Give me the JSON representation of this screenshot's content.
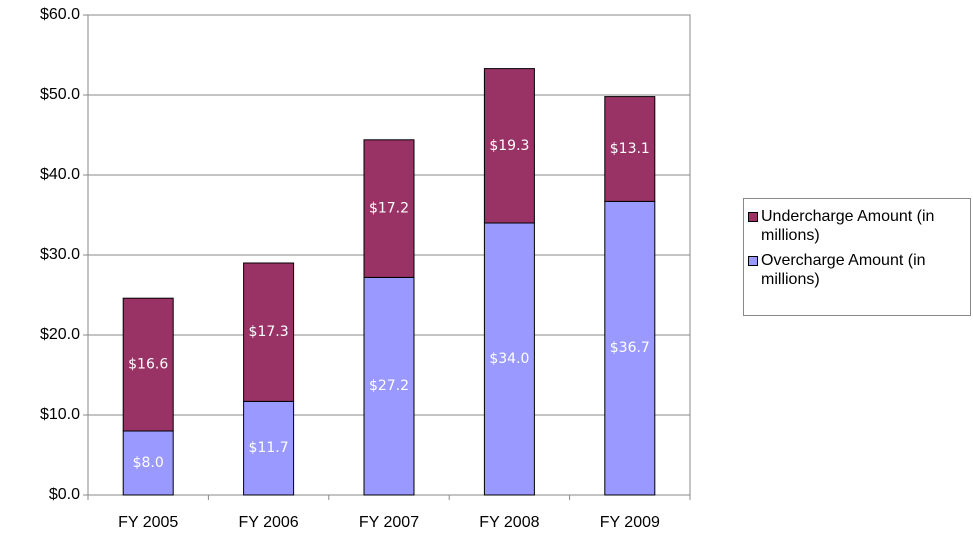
{
  "chart_data": {
    "type": "stacked-bar",
    "categories": [
      "FY 2005",
      "FY 2006",
      "FY 2007",
      "FY 2008",
      "FY 2009"
    ],
    "series": [
      {
        "name": "Overcharge Amount (in millions)",
        "color": "#9999ff",
        "values": [
          8.0,
          11.7,
          27.2,
          34.0,
          36.7
        ],
        "value_labels": [
          "$8.0",
          "$11.7",
          "$27.2",
          "$34.0",
          "$36.7"
        ]
      },
      {
        "name": "Undercharge Amount (in millions)",
        "color": "#993366",
        "values": [
          16.6,
          17.3,
          17.2,
          19.3,
          13.1
        ],
        "value_labels": [
          "$16.6",
          "$17.3",
          "$17.2",
          "$19.3",
          "$13.1"
        ]
      }
    ],
    "ylim": [
      0,
      60
    ],
    "yticks": [
      {
        "value": 0,
        "label": "$0.0"
      },
      {
        "value": 10,
        "label": "$10.0"
      },
      {
        "value": 20,
        "label": "$20.0"
      },
      {
        "value": 30,
        "label": "$30.0"
      },
      {
        "value": 40,
        "label": "$40.0"
      },
      {
        "value": 50,
        "label": "$50.0"
      },
      {
        "value": 60,
        "label": "$60.0"
      }
    ],
    "grid": true
  }
}
